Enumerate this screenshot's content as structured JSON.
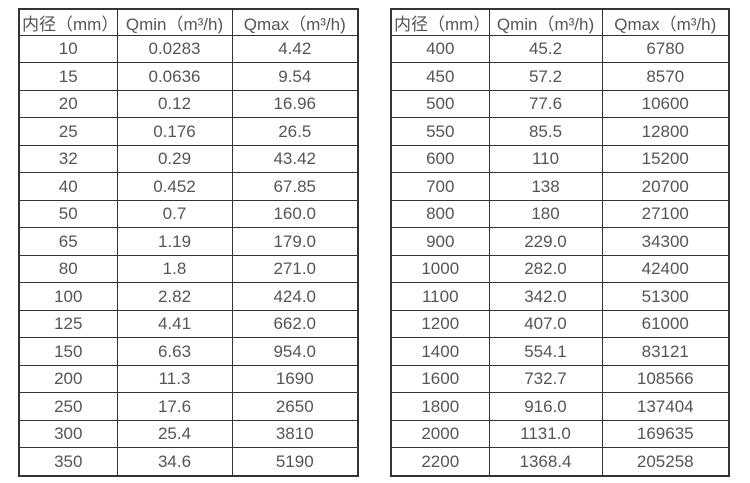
{
  "page": {
    "background": "#ffffff",
    "border_color": "#333333",
    "text_color": "#555555"
  },
  "tables": [
    {
      "headers": [
        "内径（mm）",
        "Qmin（m³/h)",
        "Qmax（m³/h)"
      ],
      "rows": [
        [
          "10",
          "0.0283",
          "4.42"
        ],
        [
          "15",
          "0.0636",
          "9.54"
        ],
        [
          "20",
          "0.12",
          "16.96"
        ],
        [
          "25",
          "0.176",
          "26.5"
        ],
        [
          "32",
          "0.29",
          "43.42"
        ],
        [
          "40",
          "0.452",
          "67.85"
        ],
        [
          "50",
          "0.7",
          "160.0"
        ],
        [
          "65",
          "1.19",
          "179.0"
        ],
        [
          "80",
          "1.8",
          "271.0"
        ],
        [
          "100",
          "2.82",
          "424.0"
        ],
        [
          "125",
          "4.41",
          "662.0"
        ],
        [
          "150",
          "6.63",
          "954.0"
        ],
        [
          "200",
          "11.3",
          "1690"
        ],
        [
          "250",
          "17.6",
          "2650"
        ],
        [
          "300",
          "25.4",
          "3810"
        ],
        [
          "350",
          "34.6",
          "5190"
        ]
      ]
    },
    {
      "headers": [
        "内径（mm）",
        "Qmin（m³/h)",
        "Qmax（m³/h)"
      ],
      "rows": [
        [
          "400",
          "45.2",
          "6780"
        ],
        [
          "450",
          "57.2",
          "8570"
        ],
        [
          "500",
          "77.6",
          "10600"
        ],
        [
          "550",
          "85.5",
          "12800"
        ],
        [
          "600",
          "110",
          "15200"
        ],
        [
          "700",
          "138",
          "20700"
        ],
        [
          "800",
          "180",
          "27100"
        ],
        [
          "900",
          "229.0",
          "34300"
        ],
        [
          "1000",
          "282.0",
          "42400"
        ],
        [
          "1100",
          "342.0",
          "51300"
        ],
        [
          "1200",
          "407.0",
          "61000"
        ],
        [
          "1400",
          "554.1",
          "83121"
        ],
        [
          "1600",
          "732.7",
          "108566"
        ],
        [
          "1800",
          "916.0",
          "137404"
        ],
        [
          "2000",
          "1131.0",
          "169635"
        ],
        [
          "2200",
          "1368.4",
          "205258"
        ]
      ]
    }
  ]
}
